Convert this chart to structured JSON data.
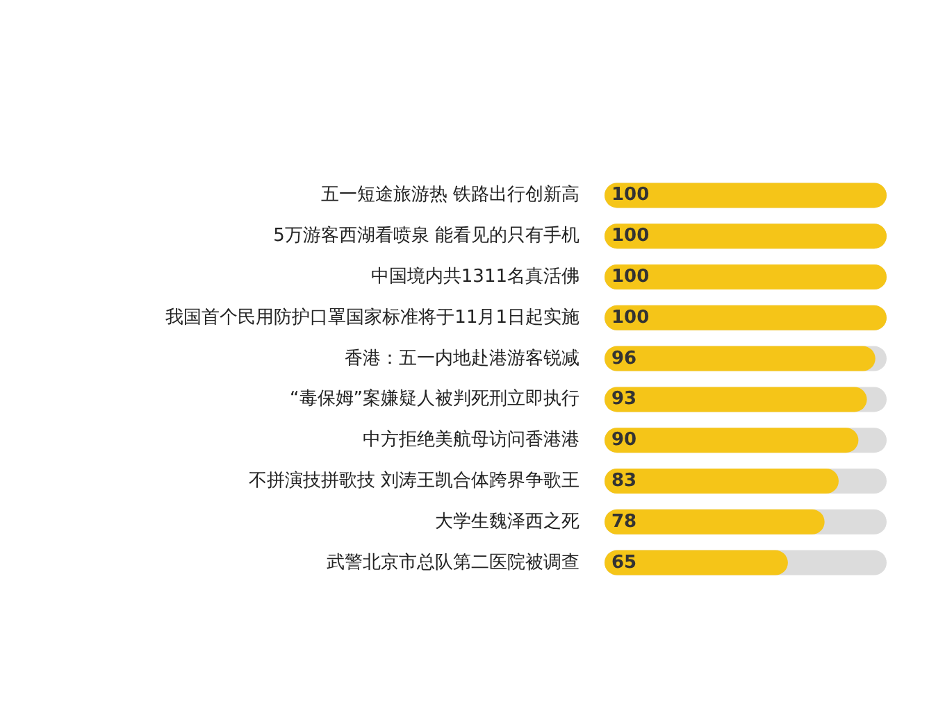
{
  "chart_data": {
    "type": "bar",
    "orientation": "horizontal",
    "categories": [
      "五一短途旅游热 铁路出行创新高",
      "5万游客西湖看喷泉 能看见的只有手机",
      "中国境内共1311名真活佛",
      "我国首个民用防护口罩国家标准将于11月1日起实施",
      "香港：五一内地赴港游客锐减",
      "“毒保姆”案嫌疑人被判死刑立即执行",
      "中方拒绝美航母访问香港港",
      "不拼演技拼歌技 刘涛王凯合体跨界争歌王",
      "大学生魏泽西之死",
      "武警北京市总队第二医院被调查"
    ],
    "values": [
      100,
      100,
      100,
      100,
      96,
      93,
      90,
      83,
      78,
      65
    ],
    "color": "#f5c518",
    "xlim": [
      0,
      100
    ],
    "tick_labels": "y",
    "data_labels": true
  }
}
